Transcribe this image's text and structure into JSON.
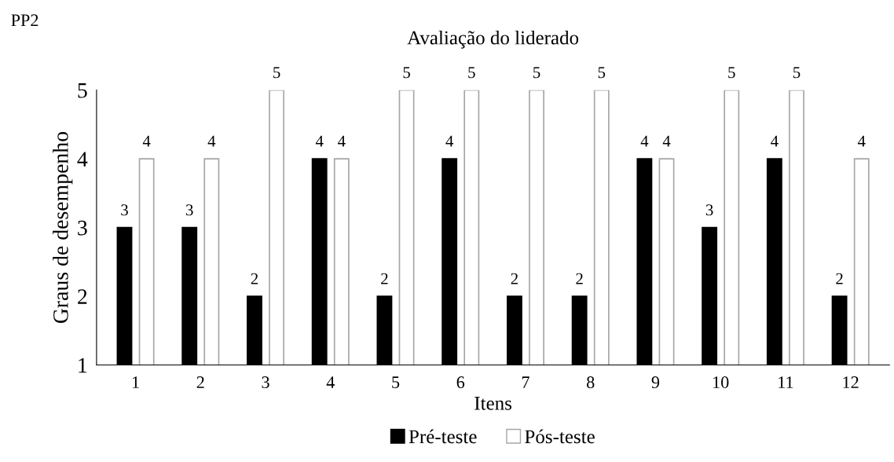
{
  "chart_data": {
    "type": "bar",
    "title": "Avaliação do liderado",
    "xlabel": "Itens",
    "ylabel": "Graus de desempenho",
    "annotations": [
      "PP2"
    ],
    "categories": [
      "1",
      "2",
      "3",
      "4",
      "5",
      "6",
      "7",
      "8",
      "9",
      "10",
      "11",
      "12"
    ],
    "series": [
      {
        "name": "Pré-teste",
        "color": "#000000",
        "values": [
          3,
          3,
          2,
          4,
          2,
          4,
          2,
          2,
          4,
          3,
          4,
          2
        ]
      },
      {
        "name": "Pós-teste",
        "color": "#ffffff",
        "values": [
          4,
          4,
          5,
          4,
          5,
          5,
          5,
          5,
          4,
          5,
          5,
          4
        ]
      }
    ],
    "ylim": [
      1,
      5
    ],
    "yticks": [
      1,
      2,
      3,
      4,
      5
    ],
    "grid": false,
    "legend": "bottom",
    "data_labels": true
  }
}
